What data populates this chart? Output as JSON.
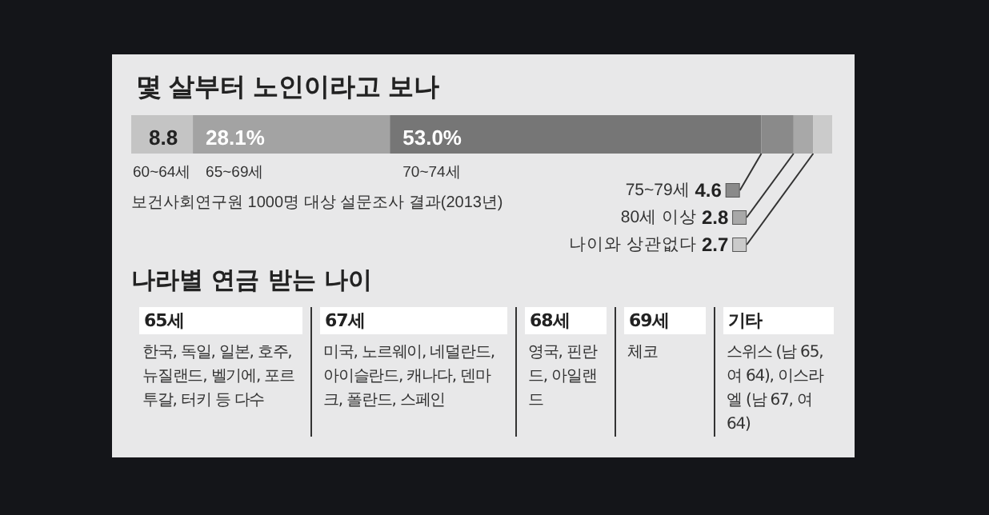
{
  "chart_data": [
    {
      "type": "bar",
      "orientation": "horizontal",
      "stacked": true,
      "title": "몇 살부터 노인이라고 보나",
      "categories": [
        null
      ],
      "xlim": [
        0,
        100
      ],
      "tick_labels": false,
      "legend": "right",
      "series": [
        {
          "name": "60~64세",
          "color": "#c4c4c4",
          "values": [
            8.8
          ],
          "value_labels": [
            "8.8"
          ]
        },
        {
          "name": "65~69세",
          "color": "#a3a3a3",
          "values": [
            28.1
          ],
          "value_labels": [
            "28.1%"
          ]
        },
        {
          "name": "70~74세",
          "color": "#767676",
          "values": [
            53.0
          ],
          "value_labels": [
            "53.0%"
          ]
        },
        {
          "name": "75~79세",
          "color": "#8a8a8a",
          "values": [
            4.6
          ],
          "value_labels": [
            "4.6"
          ]
        },
        {
          "name": "80세 이상",
          "color": "#a8a8a8",
          "values": [
            2.8
          ],
          "value_labels": [
            "2.8"
          ]
        },
        {
          "name": "나이와 상관없다",
          "color": "#cbcbcb",
          "values": [
            2.7
          ],
          "value_labels": [
            "2.7"
          ]
        }
      ],
      "annotations": [
        "보건사회연구원 1000명 대상 설문조사 결과(2013년)"
      ]
    },
    {
      "type": "other",
      "title": "나라별 연금 받는 나이",
      "annotations": [
        "65세",
        "한국, 독일, 일본, 호주, 뉴질랜드, 벨기에, 포르투갈, 터키 등 다수",
        "67세",
        "미국, 노르웨이, 네덜란드, 아이슬란드, 캐나다, 덴마크, 폴란드, 스페인",
        "68세",
        "영국, 핀란드, 아일랜드",
        "69세",
        "체코",
        "기타",
        "스위스 (남 65, 여 64), 이스라엘 (남 67, 여 64)"
      ]
    }
  ]
}
